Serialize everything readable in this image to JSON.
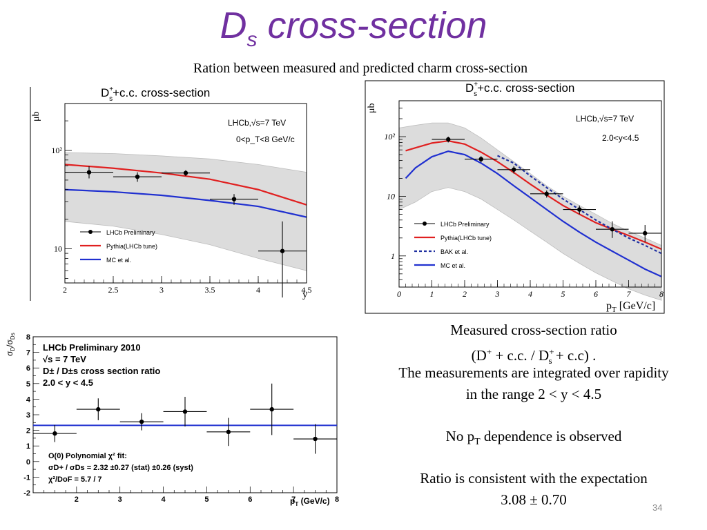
{
  "slide": {
    "title_main": "D",
    "title_sub": "s",
    "title_rest": " cross-section",
    "subtitle": "Ration between measured and predicted charm cross-section",
    "page_number": "34",
    "text": {
      "line1": "Measured cross-section ratio",
      "line2_a": "(D",
      "line2_sup1": "+",
      "line2_b": " + c.c. /  D",
      "line2_sup2": "+",
      "line2_sub2": "s",
      "line2_c": " + c.c)  .",
      "line3": "The measurements are integrated over rapidity",
      "line4": "in the range 2 < y < 4.5",
      "line5_a": "No p",
      "line5_sub": "T",
      "line5_b": " dependence is observed",
      "line6": "Ratio is consistent with the expectation",
      "line7": "3.08 ± 0.70"
    }
  },
  "chart_data": [
    {
      "id": "ds-vs-y",
      "type": "scatter",
      "title_main": "D",
      "title_sup": "+",
      "title_sub": "s",
      "title_rest": "+c.c. cross-section",
      "xlabel": "y",
      "ylabel": "μb",
      "xlim": [
        2,
        4.5
      ],
      "ylim": [
        4.5,
        300
      ],
      "yscale": "log",
      "x_ticks": [
        "2",
        "2.5",
        "3",
        "3.5",
        "4",
        "4.5"
      ],
      "y_tick_labels": [
        "10",
        "10²"
      ],
      "annotations": [
        "LHCb,√s=7 TeV",
        "0<p_T<8 GeV/c"
      ],
      "legend": [
        "LHCb Preliminary",
        "Pythia(LHCb tune)",
        "MC et al."
      ],
      "legend_position": "bottom-left",
      "series": [
        {
          "name": "LHCb Preliminary",
          "kind": "points",
          "x": [
            2.25,
            2.75,
            3.25,
            3.75,
            4.25
          ],
          "y": [
            60,
            54,
            59,
            32,
            9.5
          ],
          "xerr": [
            0.25,
            0.25,
            0.25,
            0.25,
            0.25
          ],
          "ylo": [
            52,
            48,
            55,
            28,
            3.2
          ],
          "yhi": [
            69,
            60,
            63,
            36,
            19
          ]
        },
        {
          "name": "Pythia(LHCb tune)",
          "kind": "line",
          "color": "#e02020",
          "x": [
            2,
            2.5,
            3,
            3.5,
            4,
            4.5
          ],
          "y": [
            72,
            66,
            59,
            51,
            40,
            28
          ]
        },
        {
          "name": "MC et al.",
          "kind": "line",
          "color": "#2030d0",
          "x": [
            2,
            2.5,
            3,
            3.5,
            4,
            4.5
          ],
          "y": [
            40,
            38,
            35,
            31,
            27,
            21
          ]
        },
        {
          "name": "band",
          "kind": "band",
          "color": "#dcdcdc",
          "x": [
            2,
            2.5,
            3,
            3.5,
            4,
            4.5
          ],
          "upper": [
            95,
            93,
            88,
            82,
            72,
            60
          ],
          "lower": [
            19,
            17,
            14,
            11,
            8,
            6
          ]
        }
      ]
    },
    {
      "id": "ds-vs-pt",
      "type": "scatter",
      "title_main": "D",
      "title_sup": "+",
      "title_sub": "s",
      "title_rest": "+c.c. cross-section",
      "xlabel": "p_T [GeV/c]",
      "ylabel": "μb",
      "xlim": [
        0,
        8
      ],
      "ylim": [
        0.3,
        400
      ],
      "yscale": "log",
      "x_ticks": [
        "0",
        "1",
        "2",
        "3",
        "4",
        "5",
        "6",
        "7",
        "8"
      ],
      "y_tick_labels": [
        "1",
        "10",
        "10²"
      ],
      "annotations": [
        "LHCb,√s=7 TeV",
        "2.0<y<4.5"
      ],
      "legend": [
        "LHCb Preliminary",
        "Pythia(LHCb tune)",
        "BAK et al.",
        "MC et al."
      ],
      "legend_position": "bottom-left",
      "series": [
        {
          "name": "LHCb Preliminary",
          "kind": "points",
          "x": [
            1.5,
            2.5,
            3.5,
            4.5,
            5.5,
            6.5,
            7.5
          ],
          "y": [
            90,
            42,
            28,
            11,
            6,
            2.8,
            2.4
          ],
          "xerr": [
            0.5,
            0.5,
            0.5,
            0.5,
            0.5,
            0.5,
            0.5
          ],
          "ylo": [
            80,
            37,
            24,
            9.5,
            5,
            2.0,
            1.7
          ],
          "yhi": [
            100,
            47,
            32,
            12.5,
            7,
            3.8,
            3.3
          ]
        },
        {
          "name": "Pythia(LHCb tune)",
          "kind": "line",
          "color": "#e02020",
          "x": [
            0.2,
            0.5,
            1,
            1.5,
            2,
            2.5,
            3,
            3.5,
            4,
            4.5,
            5,
            5.5,
            6,
            6.5,
            7,
            7.5,
            8
          ],
          "y": [
            58,
            65,
            78,
            85,
            75,
            55,
            38,
            25,
            16,
            10.5,
            7,
            5,
            3.6,
            2.8,
            2.2,
            1.7,
            1.3
          ]
        },
        {
          "name": "BAK et al.",
          "kind": "dashed",
          "color": "#2030a0",
          "x": [
            3,
            3.5,
            4,
            4.5,
            5,
            5.5,
            6,
            6.5,
            7,
            7.5,
            8
          ],
          "y": [
            48,
            36,
            22,
            14,
            9,
            6,
            4,
            2.8,
            2,
            1.5,
            1.1
          ]
        },
        {
          "name": "MC et al.",
          "kind": "line",
          "color": "#2030d0",
          "x": [
            0.2,
            0.5,
            1,
            1.5,
            2,
            2.5,
            3,
            3.5,
            4,
            4.5,
            5,
            5.5,
            6,
            6.5,
            7,
            7.5,
            8
          ],
          "y": [
            20,
            30,
            46,
            57,
            50,
            36,
            24,
            15,
            9.5,
            6,
            3.8,
            2.5,
            1.7,
            1.2,
            0.85,
            0.6,
            0.45
          ]
        },
        {
          "name": "band",
          "kind": "band",
          "color": "#dcdcdc",
          "x": [
            0,
            0.5,
            1,
            1.5,
            2,
            2.5,
            3,
            3.5,
            4,
            4.5,
            5,
            5.5,
            6,
            6.5,
            7,
            7.5,
            8
          ],
          "upper": [
            140,
            155,
            170,
            170,
            140,
            95,
            60,
            38,
            24,
            15,
            10,
            7,
            5,
            3.5,
            2.6,
            2.0,
            1.5
          ],
          "lower": [
            6,
            8,
            12,
            14,
            12,
            9,
            6,
            4,
            2.6,
            1.7,
            1.1,
            0.75,
            0.52,
            0.38,
            0.28,
            0.22,
            0.18
          ]
        }
      ]
    },
    {
      "id": "ratio-vs-pt",
      "type": "scatter",
      "xlabel": "p_T (GeV/c)",
      "ylabel": "σ_D+/σ_Ds",
      "xlim": [
        1,
        8
      ],
      "ylim": [
        -2,
        8
      ],
      "x_ticks": [
        "2",
        "3",
        "4",
        "5",
        "6",
        "7",
        "8"
      ],
      "y_ticks": [
        "-2",
        "-1",
        "0",
        "1",
        "2",
        "3",
        "4",
        "5",
        "6",
        "7",
        "8"
      ],
      "info_lines": [
        "LHCb Preliminary 2010",
        "√s = 7 TeV",
        "D± / D±s cross section ratio",
        "2.0 < y < 4.5"
      ],
      "fit_lines": [
        "O(0) Polynomial χ² fit:",
        "σD+ / σDs = 2.32 ±0.27 (stat) ±0.26 (syst)",
        "χ²/DoF = 5.7 / 7"
      ],
      "fit_value": 2.32,
      "fit_color": "#2030d0",
      "series": [
        {
          "name": "ratio",
          "kind": "points",
          "x": [
            1.5,
            2.5,
            3.5,
            4.5,
            5.5,
            6.5,
            7.5
          ],
          "y": [
            1.8,
            3.35,
            2.55,
            3.2,
            1.9,
            3.35,
            1.45
          ],
          "xerr": [
            0.5,
            0.5,
            0.5,
            0.5,
            0.5,
            0.5,
            0.5
          ],
          "yerr": [
            0.55,
            0.7,
            0.55,
            0.95,
            0.9,
            1.65,
            0.95
          ]
        }
      ]
    }
  ]
}
